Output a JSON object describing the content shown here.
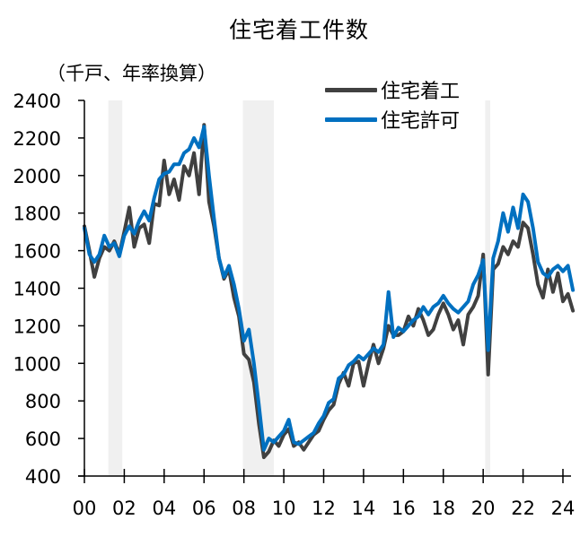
{
  "title": "住宅着工件数",
  "unit_label": "（千戸、年率換算）",
  "legend": [
    {
      "label": "住宅着工",
      "color": "#404040"
    },
    {
      "label": "住宅許可",
      "color": "#0070C0"
    }
  ],
  "chart_data": {
    "type": "line",
    "title": "住宅着工件数",
    "ylabel": "（千戸、年率換算）",
    "xlabel": "",
    "ylim": [
      400,
      2400
    ],
    "xlim": [
      2000,
      2024.5
    ],
    "yticks": [
      400,
      600,
      800,
      1000,
      1200,
      1400,
      1600,
      1800,
      2000,
      2200,
      2400
    ],
    "xtick_labels": [
      "00",
      "02",
      "04",
      "06",
      "08",
      "10",
      "12",
      "14",
      "16",
      "18",
      "20",
      "22",
      "24"
    ],
    "xtick_years": [
      2000,
      2002,
      2004,
      2006,
      2008,
      2010,
      2012,
      2014,
      2016,
      2018,
      2020,
      2022,
      2024
    ],
    "grid": false,
    "legend_position": "top-right",
    "shaded_periods": [
      {
        "start": 2001.2,
        "end": 2001.9
      },
      {
        "start": 2007.95,
        "end": 2009.5
      },
      {
        "start": 2020.1,
        "end": 2020.35
      }
    ],
    "x": [
      2000.0,
      2000.25,
      2000.5,
      2000.75,
      2001.0,
      2001.25,
      2001.5,
      2001.75,
      2002.0,
      2002.25,
      2002.5,
      2002.75,
      2003.0,
      2003.25,
      2003.5,
      2003.75,
      2004.0,
      2004.25,
      2004.5,
      2004.75,
      2005.0,
      2005.25,
      2005.5,
      2005.75,
      2006.0,
      2006.25,
      2006.5,
      2006.75,
      2007.0,
      2007.25,
      2007.5,
      2007.75,
      2008.0,
      2008.25,
      2008.5,
      2008.75,
      2009.0,
      2009.25,
      2009.5,
      2009.75,
      2010.0,
      2010.25,
      2010.5,
      2010.75,
      2011.0,
      2011.25,
      2011.5,
      2011.75,
      2012.0,
      2012.25,
      2012.5,
      2012.75,
      2013.0,
      2013.25,
      2013.5,
      2013.75,
      2014.0,
      2014.25,
      2014.5,
      2014.75,
      2015.0,
      2015.25,
      2015.5,
      2015.75,
      2016.0,
      2016.25,
      2016.5,
      2016.75,
      2017.0,
      2017.25,
      2017.5,
      2017.75,
      2018.0,
      2018.25,
      2018.5,
      2018.75,
      2019.0,
      2019.25,
      2019.5,
      2019.75,
      2020.0,
      2020.25,
      2020.5,
      2020.75,
      2021.0,
      2021.25,
      2021.5,
      2021.75,
      2022.0,
      2022.25,
      2022.5,
      2022.75,
      2023.0,
      2023.25,
      2023.5,
      2023.75,
      2024.0,
      2024.25,
      2024.5
    ],
    "series": [
      {
        "name": "住宅着工",
        "color": "#404040",
        "values": [
          1730,
          1600,
          1460,
          1560,
          1620,
          1600,
          1650,
          1580,
          1700,
          1830,
          1620,
          1720,
          1740,
          1640,
          1850,
          1840,
          2080,
          1900,
          1980,
          1870,
          2050,
          2000,
          2120,
          1900,
          2270,
          1860,
          1730,
          1560,
          1450,
          1500,
          1350,
          1250,
          1050,
          1020,
          900,
          680,
          500,
          530,
          590,
          560,
          620,
          650,
          560,
          580,
          540,
          580,
          620,
          640,
          700,
          750,
          780,
          890,
          950,
          880,
          1000,
          1010,
          880,
          1000,
          1100,
          1000,
          1080,
          1200,
          1150,
          1150,
          1170,
          1250,
          1200,
          1290,
          1230,
          1150,
          1180,
          1260,
          1320,
          1260,
          1180,
          1230,
          1100,
          1260,
          1300,
          1360,
          1580,
          940,
          1500,
          1530,
          1620,
          1580,
          1650,
          1620,
          1750,
          1720,
          1580,
          1420,
          1350,
          1500,
          1380,
          1480,
          1330,
          1370,
          1280
        ]
      },
      {
        "name": "住宅許可",
        "color": "#0070C0",
        "values": [
          1720,
          1580,
          1540,
          1580,
          1680,
          1620,
          1640,
          1570,
          1680,
          1730,
          1690,
          1760,
          1810,
          1760,
          1880,
          1980,
          2010,
          2020,
          2060,
          2060,
          2120,
          2140,
          2200,
          2150,
          2260,
          2000,
          1770,
          1560,
          1460,
          1520,
          1420,
          1290,
          1120,
          1180,
          1000,
          780,
          540,
          600,
          580,
          610,
          640,
          700,
          580,
          570,
          590,
          610,
          630,
          680,
          720,
          790,
          810,
          920,
          940,
          990,
          1010,
          1040,
          1020,
          1050,
          1080,
          1060,
          1100,
          1380,
          1140,
          1190,
          1170,
          1200,
          1230,
          1250,
          1300,
          1260,
          1300,
          1320,
          1360,
          1320,
          1290,
          1270,
          1300,
          1330,
          1420,
          1470,
          1550,
          1070,
          1560,
          1650,
          1800,
          1700,
          1830,
          1720,
          1900,
          1860,
          1720,
          1540,
          1480,
          1460,
          1500,
          1520,
          1490,
          1520,
          1390
        ]
      }
    ]
  }
}
